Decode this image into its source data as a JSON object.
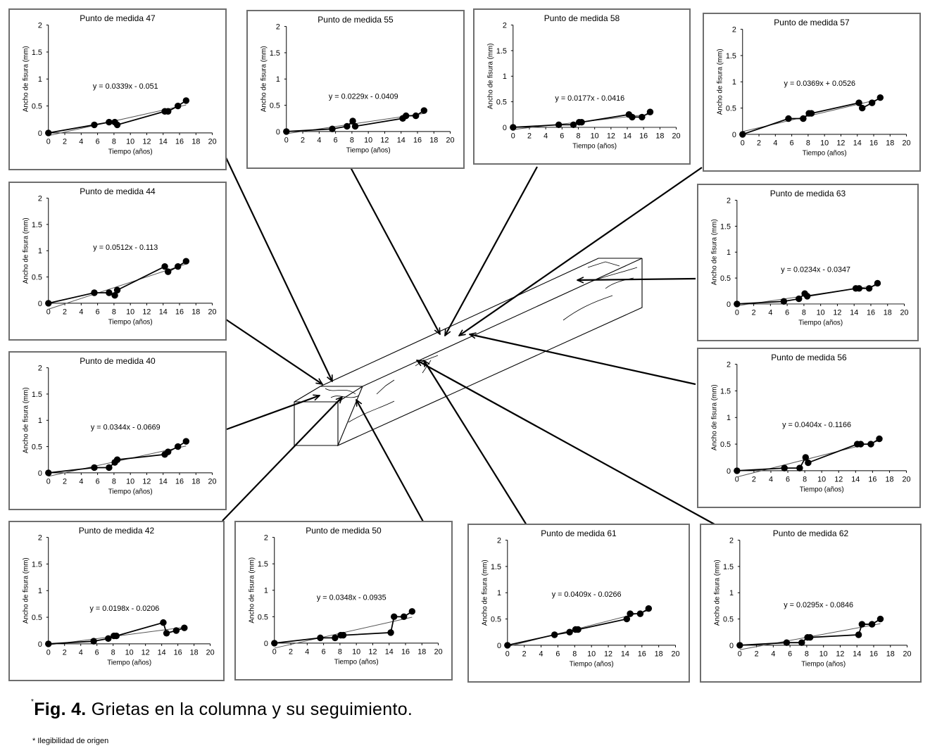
{
  "caption": {
    "mark": "*",
    "label": "Fig. 4.",
    "text": " Grietas en la columna y su seguimiento."
  },
  "footnote": "* Ilegibilidad de origen",
  "chart_data": [
    {
      "type": "scatter",
      "title": "Punto de medida 47",
      "xlabel": "Tiempo (años)",
      "ylabel": "Ancho de fisura (mm)",
      "xlim": [
        0,
        20
      ],
      "ylim": [
        0,
        2
      ],
      "xticks": [
        "0",
        "2",
        "4",
        "6",
        "8",
        "10",
        "12",
        "14",
        "16",
        "18",
        "20"
      ],
      "yticks": [
        "0",
        "0.5",
        "1",
        "1.5",
        "2"
      ],
      "equation": "y = 0.0339x - 0.051",
      "trend": [
        0.0339,
        -0.051
      ],
      "x": [
        0,
        5.6,
        7.4,
        8.1,
        8.4,
        14.2,
        14.6,
        15.8,
        16.8
      ],
      "y": [
        0,
        0.15,
        0.2,
        0.2,
        0.15,
        0.4,
        0.4,
        0.5,
        0.6
      ]
    },
    {
      "type": "scatter",
      "title": "Punto de medida 55",
      "xlabel": "Tiempo (años)",
      "ylabel": "Ancho de fisura (mm)",
      "xlim": [
        0,
        20
      ],
      "ylim": [
        0,
        2
      ],
      "xticks": [
        "0",
        "2",
        "4",
        "6",
        "8",
        "10",
        "12",
        "14",
        "16",
        "18",
        "20"
      ],
      "yticks": [
        "0",
        "0.5",
        "1",
        "1.5",
        "2"
      ],
      "equation": "y = 0.0229x - 0.0409",
      "trend": [
        0.0229,
        -0.0409
      ],
      "x": [
        0,
        5.6,
        7.4,
        8.1,
        8.4,
        14.2,
        14.6,
        15.8,
        16.8
      ],
      "y": [
        0,
        0.05,
        0.1,
        0.2,
        0.1,
        0.25,
        0.3,
        0.3,
        0.4
      ]
    },
    {
      "type": "scatter",
      "title": "Punto de medida 58",
      "xlabel": "Tiempo (años)",
      "ylabel": "Ancho de fisura (mm)",
      "xlim": [
        0,
        20
      ],
      "ylim": [
        0,
        2
      ],
      "xticks": [
        "0",
        "2",
        "4",
        "6",
        "8",
        "10",
        "12",
        "14",
        "16",
        "18",
        "20"
      ],
      "yticks": [
        "0",
        "0.5",
        "1",
        "1.5",
        "2"
      ],
      "equation": "y = 0.0177x - 0.0416",
      "trend": [
        0.0177,
        -0.0416
      ],
      "x": [
        0,
        5.6,
        7.4,
        8.1,
        8.4,
        14.2,
        14.6,
        15.8,
        16.8
      ],
      "y": [
        0,
        0.05,
        0.05,
        0.1,
        0.1,
        0.25,
        0.2,
        0.2,
        0.3
      ]
    },
    {
      "type": "scatter",
      "title": "Punto de medida 57",
      "xlabel": "Tiempo (años)",
      "ylabel": "Ancho de fisura (mm)",
      "xlim": [
        0,
        20
      ],
      "ylim": [
        0,
        2
      ],
      "xticks": [
        "0",
        "2",
        "4",
        "6",
        "8",
        "10",
        "12",
        "14",
        "16",
        "18",
        "20"
      ],
      "yticks": [
        "0",
        "0.5",
        "1",
        "1.5",
        "2"
      ],
      "equation": "y = 0.0369x + 0.0526",
      "trend": [
        0.0369,
        0.0526
      ],
      "x": [
        0,
        5.6,
        7.4,
        8.1,
        8.4,
        14.2,
        14.6,
        15.8,
        16.8
      ],
      "y": [
        0,
        0.3,
        0.3,
        0.4,
        0.4,
        0.6,
        0.5,
        0.6,
        0.7
      ]
    },
    {
      "type": "scatter",
      "title": "Punto de medida 44",
      "xlabel": "Tiempo (años)",
      "ylabel": "Ancho de fisura (mm)",
      "xlim": [
        0,
        20
      ],
      "ylim": [
        0,
        2
      ],
      "xticks": [
        "0",
        "2",
        "4",
        "6",
        "8",
        "10",
        "12",
        "14",
        "16",
        "18",
        "20"
      ],
      "yticks": [
        "0",
        "0.5",
        "1",
        "1.5",
        "2"
      ],
      "equation": "y = 0.0512x - 0.113",
      "trend": [
        0.0512,
        -0.113
      ],
      "x": [
        0,
        5.6,
        7.4,
        8.1,
        8.4,
        14.2,
        14.6,
        15.8,
        16.8
      ],
      "y": [
        0,
        0.2,
        0.2,
        0.15,
        0.25,
        0.7,
        0.6,
        0.7,
        0.8
      ]
    },
    {
      "type": "scatter",
      "title": "Punto de medida 63",
      "xlabel": "Tiempo (años)",
      "ylabel": "Ancho de fisura (mm)",
      "xlim": [
        0,
        20
      ],
      "ylim": [
        0,
        2
      ],
      "xticks": [
        "0",
        "2",
        "4",
        "6",
        "8",
        "10",
        "12",
        "14",
        "16",
        "18",
        "20"
      ],
      "yticks": [
        "0",
        "0.5",
        "1",
        "1.5",
        "2"
      ],
      "equation": "y = 0.0234x - 0.0347",
      "trend": [
        0.0234,
        -0.0347
      ],
      "x": [
        0,
        5.6,
        7.4,
        8.1,
        8.4,
        14.2,
        14.6,
        15.8,
        16.8
      ],
      "y": [
        0,
        0.05,
        0.1,
        0.2,
        0.15,
        0.3,
        0.3,
        0.3,
        0.4
      ]
    },
    {
      "type": "scatter",
      "title": "Punto de medida 40",
      "xlabel": "Tiempo (años)",
      "ylabel": "Ancho de fisura (mm)",
      "xlim": [
        0,
        20
      ],
      "ylim": [
        0,
        2
      ],
      "xticks": [
        "0",
        "2",
        "4",
        "6",
        "8",
        "10",
        "12",
        "14",
        "16",
        "18",
        "20"
      ],
      "yticks": [
        "0",
        "0.5",
        "1",
        "1.5",
        "2"
      ],
      "equation": "y = 0.0344x - 0.0669",
      "trend": [
        0.0344,
        -0.0669
      ],
      "x": [
        0,
        5.6,
        7.4,
        8.1,
        8.4,
        14.2,
        14.6,
        15.8,
        16.8
      ],
      "y": [
        0,
        0.1,
        0.1,
        0.2,
        0.25,
        0.35,
        0.4,
        0.5,
        0.6
      ]
    },
    {
      "type": "scatter",
      "title": "Punto de medida 56",
      "xlabel": "Tiempo (años)",
      "ylabel": "Ancho de fisura (mm)",
      "xlim": [
        0,
        20
      ],
      "ylim": [
        0,
        2
      ],
      "xticks": [
        "0",
        "2",
        "4",
        "6",
        "8",
        "10",
        "12",
        "14",
        "16",
        "18",
        "20"
      ],
      "yticks": [
        "0",
        "0.5",
        "1",
        "1.5",
        "2"
      ],
      "equation": "y = 0.0404x - 0.1166",
      "trend": [
        0.0404,
        -0.1166
      ],
      "x": [
        0,
        5.6,
        7.4,
        8.1,
        8.4,
        14.2,
        14.6,
        15.8,
        16.8
      ],
      "y": [
        0,
        0.05,
        0.05,
        0.25,
        0.15,
        0.5,
        0.5,
        0.5,
        0.6
      ]
    },
    {
      "type": "scatter",
      "title": "Punto de medida 42",
      "xlabel": "Tiempo (años)",
      "ylabel": "Ancho de fisura (mm)",
      "xlim": [
        0,
        20
      ],
      "ylim": [
        0,
        2
      ],
      "xticks": [
        "0",
        "2",
        "4",
        "6",
        "8",
        "10",
        "12",
        "14",
        "16",
        "18",
        "20"
      ],
      "yticks": [
        "0",
        "0.5",
        "1",
        "1.5",
        "2"
      ],
      "equation": "y = 0.0198x - 0.0206",
      "trend": [
        0.0198,
        -0.0206
      ],
      "x": [
        0,
        5.6,
        7.4,
        8.1,
        8.4,
        14.2,
        14.6,
        15.8,
        16.8
      ],
      "y": [
        0,
        0.05,
        0.1,
        0.15,
        0.15,
        0.4,
        0.2,
        0.25,
        0.3
      ]
    },
    {
      "type": "scatter",
      "title": "Punto de medida 50",
      "xlabel": "Tiempo (años)",
      "ylabel": "Ancho de fisura (mm)",
      "xlim": [
        0,
        20
      ],
      "ylim": [
        0,
        2
      ],
      "xticks": [
        "0",
        "2",
        "4",
        "6",
        "8",
        "10",
        "12",
        "14",
        "16",
        "18",
        "20"
      ],
      "yticks": [
        "0",
        "0.5",
        "1",
        "1.5",
        "2"
      ],
      "equation": "y = 0.0348x - 0.0935",
      "trend": [
        0.0348,
        -0.0935
      ],
      "x": [
        0,
        5.6,
        7.4,
        8.1,
        8.4,
        14.2,
        14.6,
        15.8,
        16.8
      ],
      "y": [
        0,
        0.1,
        0.1,
        0.15,
        0.15,
        0.2,
        0.5,
        0.5,
        0.6
      ]
    },
    {
      "type": "scatter",
      "title": "Punto de medida 61",
      "xlabel": "Tiempo (años)",
      "ylabel": "Ancho de fisura (mm)",
      "xlim": [
        0,
        20
      ],
      "ylim": [
        0,
        2
      ],
      "xticks": [
        "0",
        "2",
        "4",
        "6",
        "8",
        "10",
        "12",
        "14",
        "16",
        "18",
        "20"
      ],
      "yticks": [
        "0",
        "0.5",
        "1",
        "1.5",
        "2"
      ],
      "equation": "y = 0.0409x - 0.0266",
      "trend": [
        0.0409,
        -0.0266
      ],
      "x": [
        0,
        5.6,
        7.4,
        8.1,
        8.4,
        14.2,
        14.6,
        15.8,
        16.8
      ],
      "y": [
        0,
        0.2,
        0.25,
        0.3,
        0.3,
        0.5,
        0.6,
        0.6,
        0.7
      ]
    },
    {
      "type": "scatter",
      "title": "Punto de medida 62",
      "xlabel": "Tiempo (años)",
      "ylabel": "Ancho de fisura (mm)",
      "xlim": [
        0,
        20
      ],
      "ylim": [
        0,
        2
      ],
      "xticks": [
        "0",
        "2",
        "4",
        "6",
        "8",
        "10",
        "12",
        "14",
        "16",
        "18",
        "20"
      ],
      "yticks": [
        "0",
        "0.5",
        "1",
        "1.5",
        "2"
      ],
      "equation": "y = 0.0295x - 0.0846",
      "trend": [
        0.0295,
        -0.0846
      ],
      "x": [
        0,
        5.6,
        7.4,
        8.1,
        8.4,
        14.2,
        14.6,
        15.8,
        16.8
      ],
      "y": [
        0,
        0.05,
        0.05,
        0.15,
        0.15,
        0.2,
        0.4,
        0.4,
        0.5
      ]
    }
  ]
}
